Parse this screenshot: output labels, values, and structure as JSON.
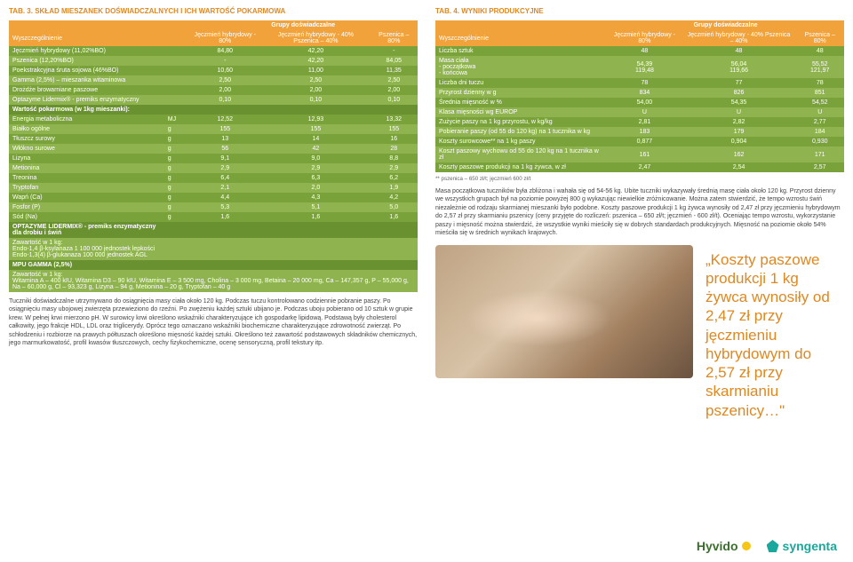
{
  "left": {
    "title": "TAB. 3. SKŁAD MIESZANEK DOŚWIADCZALNYCH I ICH WARTOŚĆ POKARMOWA",
    "groupHeader": "Grupy doświadczalne",
    "cols": [
      "Wyszczególnienie",
      "",
      "Jęczmień hybrydowy - 80%",
      "Jęczmień hybrydowy - 40% Pszenica – 40%",
      "Pszenica – 80%"
    ],
    "rows": [
      {
        "c": "A",
        "cells": [
          "Jęczmień hybrydowy (11,02%BO)",
          "",
          "84,80",
          "42,20",
          "-"
        ]
      },
      {
        "c": "B",
        "cells": [
          "Pszenica (12,20%BO)",
          "",
          "-",
          "42,20",
          "84,05"
        ]
      },
      {
        "c": "A",
        "cells": [
          "Poekstrakcyjna śruta sojowa (46%BO)",
          "",
          "10,60",
          "11,00",
          "11,35"
        ]
      },
      {
        "c": "B",
        "cells": [
          "Gamma (2,5%) – mieszanka witaminowa",
          "",
          "2,50",
          "2,50",
          "2,50"
        ]
      },
      {
        "c": "A",
        "cells": [
          "Drożdże browarniane paszowe",
          "",
          "2,00",
          "2,00",
          "2,00"
        ]
      },
      {
        "c": "B",
        "cells": [
          "Optazyme Lidermix® - premiks enzymatyczny",
          "",
          "0,10",
          "0,10",
          "0,10"
        ]
      },
      {
        "c": "S",
        "cells": [
          "Wartość pokarmowa (w 1kg mieszanki):",
          "",
          "",
          "",
          ""
        ]
      },
      {
        "c": "A",
        "cells": [
          "Energia metaboliczna",
          "MJ",
          "12,52",
          "12,93",
          "13,32"
        ]
      },
      {
        "c": "B",
        "cells": [
          "Białko ogólne",
          "g",
          "155",
          "155",
          "155"
        ]
      },
      {
        "c": "A",
        "cells": [
          "Tłuszcz surowy",
          "g",
          "13",
          "14",
          "16"
        ]
      },
      {
        "c": "B",
        "cells": [
          "Włókno surowe",
          "g",
          "56",
          "42",
          "28"
        ]
      },
      {
        "c": "A",
        "cells": [
          "Lizyna",
          "g",
          "9,1",
          "9,0",
          "8,8"
        ]
      },
      {
        "c": "B",
        "cells": [
          "Metionina",
          "g",
          "2,9",
          "2,9",
          "2,9"
        ]
      },
      {
        "c": "A",
        "cells": [
          "Treonina",
          "g",
          "6,4",
          "6,3",
          "6,2"
        ]
      },
      {
        "c": "B",
        "cells": [
          "Tryptofan",
          "g",
          "2,1",
          "2,0",
          "1,9"
        ]
      },
      {
        "c": "A",
        "cells": [
          "Wapń (Ca)",
          "g",
          "4,4",
          "4,3",
          "4,2"
        ]
      },
      {
        "c": "B",
        "cells": [
          "Fosfor (P)",
          "g",
          "5,3",
          "5,1",
          "5,0"
        ]
      },
      {
        "c": "A",
        "cells": [
          "Sód (Na)",
          "g",
          "1,6",
          "1,6",
          "1,6"
        ]
      },
      {
        "c": "S",
        "cells": [
          "OPTAZYME LIDERMIX® - premiks enzymatyczny dla drobiu i świń",
          "",
          "",
          "",
          ""
        ]
      }
    ],
    "note1": "Zawartość w 1 kg:\nEndo-1,4 β-ksylanaza 1 100 000 jednostek lepkości\nEndo-1,3(4) β-glukanaza 100 000 jednostek AGL",
    "mpu": "MPU GAMMA (2,5%)",
    "note2": "Zawartość w 1 kg:\nWitamina A – 400 kIU, Witamina D3 – 90 kIU, Witamina E – 3 500 mg, Cholina – 3 000 mg, Betaina – 20 000 mg, Ca – 147,357 g, P – 55,000 g, Na – 60,000 g, Cl – 93,323 g, Lizyna – 94 g, Metionina – 20 g, Tryptofan – 40 g",
    "para": "Tuczniki doświadczalne utrzymywano do osiągnięcia masy ciała około 120 kg. Podczas tuczu kontrolowano codziennie pobranie paszy. Po osiągnięciu masy ubojowej zwierzęta przewieziono do rzeźni. Po zwężeniu każdej sztuki ubijano je. Podczas uboju pobierano od 10 sztuk w grupie krew. W pełnej krwi mierzono pH. W surowicy krwi określono wskaźniki charakteryzujące ich gospodarkę lipidową. Podstawą były cholesterol całkowity, jego frakcje HDL, LDL oraz triglicerydy. Oprócz tego oznaczano wskaźniki biochemiczne charakteryzujące zdrowotność zwierząt. Po schłodzeniu i rozbiorze na prawych półtuszach określono mięsność każdej sztuki. Określono też zawartość podstawowych składników chemicznych, jego marmurkowatość, profil kwasów tłuszczowych, cechy fizykochemiczne, ocenę sensoryczną, profil tekstury itp."
  },
  "right": {
    "title": "TAB. 4. WYNIKI PRODUKCYJNE",
    "groupHeader": "Grupy doświadczalne",
    "cols": [
      "Wyszczególnienie",
      "Jęczmień hybrydowy - 80%",
      "Jęczmień hybrydowy - 40% Pszenica – 40%",
      "Pszenica – 80%"
    ],
    "rows": [
      {
        "c": "A",
        "cells": [
          "Liczba sztuk",
          "48",
          "48",
          "48"
        ]
      },
      {
        "c": "B",
        "cells": [
          "Masa ciała\n- początkowa\n- końcowa",
          "54,39\n119,48",
          "56,04\n119,66",
          "55,52\n121,97"
        ]
      },
      {
        "c": "A",
        "cells": [
          "Liczba dni tuczu",
          "78",
          "77",
          "78"
        ]
      },
      {
        "c": "B",
        "cells": [
          "Przyrost dzienny w g",
          "834",
          "826",
          "851"
        ]
      },
      {
        "c": "A",
        "cells": [
          "Średnia mięsność w %",
          "54,00",
          "54,35",
          "54,52"
        ]
      },
      {
        "c": "B",
        "cells": [
          "Klasa mięsności wg EUROP",
          "U",
          "U",
          "U"
        ]
      },
      {
        "c": "A",
        "cells": [
          "Zużycie paszy na 1 kg przyrostu, w kg/kg",
          "2,81",
          "2,82",
          "2,77"
        ]
      },
      {
        "c": "B",
        "cells": [
          "Pobieranie paszy (od 55 do 120 kg) na 1 tucznika w kg",
          "183",
          "179",
          "184"
        ]
      },
      {
        "c": "A",
        "cells": [
          "Koszty surowcowe** na 1 kg paszy",
          "0,877",
          "0,904",
          "0,930"
        ]
      },
      {
        "c": "B",
        "cells": [
          "Koszt paszowy wychowu od 55 do 120 kg na 1 tucznika w zł",
          "161",
          "162",
          "171"
        ]
      },
      {
        "c": "A",
        "cells": [
          "Koszty paszowe produkcji na 1 kg żywca, w zł",
          "2,47",
          "2,54",
          "2,57"
        ]
      }
    ],
    "footnote": "** pszenica – 650 zł/t; jęczmień 600 zł/t",
    "para": "Masa początkowa tuczników była zbliżona i wahała się od 54-56 kg. Ubite tuczniki wykazywały średnią masę ciała około 120 kg. Przyrost dzienny we wszystkich grupach był na poziomie powyżej 800 g wykazując niewielkie zróżnicowanie. Można zatem stwierdzić, że tempo wzrostu świń niezależnie od rodzaju skarmianej mieszanki było podobne. Koszty paszowe produkcji 1 kg żywca wynosiły od 2,47 zł przy jęczmieniu hybrydowym do 2,57 zł przy skarmianiu pszenicy (ceny przyjęte do rozliczeń: pszenica – 650 zł/t; jęczmień - 600 zł/t). Oceniając tempo wzrostu, wykorzystanie paszy i mięsność można stwierdzić, że wszystkie wyniki mieściły się w dobrych standardach produkcyjnych. Mięsność na poziomie około 54% mieściła się w średnich wynikach krajowych.",
    "quote": "„Koszty paszowe produkcji 1 kg żywca wynosiły od 2,47 zł przy jęczmieniu hybrydowym do 2,57 zł przy skarmianiu pszenicy…\"",
    "hyvido": "Hyvido",
    "syngenta": "syngenta"
  }
}
